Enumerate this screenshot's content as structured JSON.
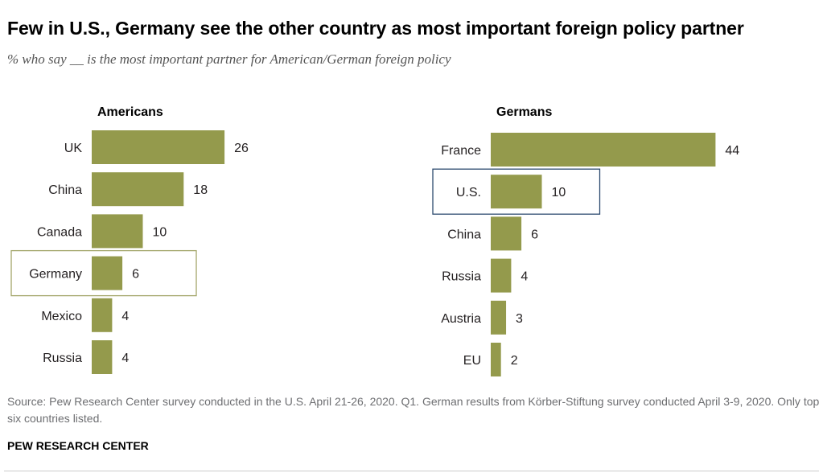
{
  "title": "Few in U.S., Germany see the other country as most important foreign policy partner",
  "subtitle": "% who say __ is the most important partner for American/German foreign policy",
  "source": "Source: Pew Research Center survey conducted in the U.S. April 21-26, 2020. Q1. German results from Körber-Stiftung survey conducted April 3-9, 2020. Only top six countries listed.",
  "brand": "PEW RESEARCH CENTER",
  "colors": {
    "bar": "#949a4c",
    "highlight_box_americans": "#a3a66a",
    "highlight_box_germans": "#2c4a6e"
  },
  "chart_data": [
    {
      "type": "bar",
      "orientation": "horizontal",
      "title": "Americans",
      "categories": [
        "UK",
        "China",
        "Canada",
        "Germany",
        "Mexico",
        "Russia"
      ],
      "values": [
        26,
        18,
        10,
        6,
        4,
        4
      ],
      "highlight": "Germany"
    },
    {
      "type": "bar",
      "orientation": "horizontal",
      "title": "Germans",
      "categories": [
        "France",
        "U.S.",
        "China",
        "Russia",
        "Austria",
        "EU"
      ],
      "values": [
        44,
        10,
        6,
        4,
        3,
        2
      ],
      "highlight": "U.S."
    }
  ]
}
